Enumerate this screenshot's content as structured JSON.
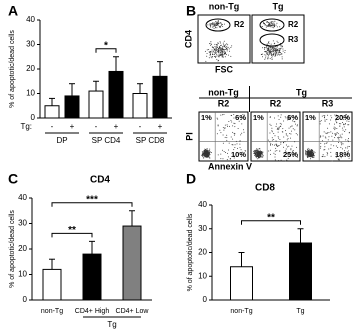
{
  "chart_data": [
    {
      "type": "bar",
      "panel": "A",
      "ylabel": "% of apoptotic/dead cells",
      "ylim": [
        0,
        40
      ],
      "yticks": [
        0,
        10,
        20,
        30,
        40
      ],
      "legend_title": "Tg:",
      "categories": [
        "DP",
        "SP CD4",
        "SP CD8"
      ],
      "series": [
        {
          "name": "-",
          "color": "#ffffff",
          "values": [
            5,
            11,
            10
          ],
          "errors": [
            3,
            4,
            4
          ]
        },
        {
          "name": "+",
          "color": "#000000",
          "values": [
            9,
            19,
            17
          ],
          "errors": [
            5,
            6,
            6
          ]
        }
      ],
      "annotations": [
        {
          "text": "*",
          "between": [
            "SP CD4"
          ]
        }
      ]
    },
    {
      "type": "flow",
      "panel": "B",
      "top": {
        "xlabel": "FSC",
        "ylabel": "CD4",
        "plots": [
          {
            "name": "non-Tg",
            "gates": [
              "R2"
            ]
          },
          {
            "name": "Tg",
            "gates": [
              "R2",
              "R3"
            ]
          }
        ]
      },
      "bottom": {
        "xlabel": "Annexin V",
        "ylabel": "PI",
        "groups": [
          {
            "name": "non-Tg",
            "plots": [
              {
                "gate": "R2",
                "values": [
                  1,
                  6,
                  10
                ],
                "value_labels": [
                  "1%",
                  "6%",
                  "10%"
                ]
              }
            ]
          },
          {
            "name": "Tg",
            "plots": [
              {
                "gate": "R2",
                "values": [
                  1,
                  6,
                  25
                ],
                "value_labels": [
                  "1%",
                  "6%",
                  "25%"
                ]
              },
              {
                "gate": "R3",
                "values": [
                  1,
                  20,
                  18
                ],
                "value_labels": [
                  "1%",
                  "20%",
                  "18%"
                ]
              }
            ]
          }
        ]
      }
    },
    {
      "type": "bar",
      "panel": "C",
      "title": "CD4",
      "ylabel": "% of apoptotic/dead cells",
      "ylim": [
        0,
        40
      ],
      "yticks": [
        0,
        10,
        20,
        30,
        40
      ],
      "categories": [
        "non-Tg",
        "CD4+ High",
        "CD4+ Low"
      ],
      "values": [
        12,
        18,
        29
      ],
      "errors": [
        4,
        5,
        6
      ],
      "colors": [
        "#ffffff",
        "#000000",
        "#808080"
      ],
      "category_groups": [
        {
          "name": "Tg",
          "members": [
            "CD4+ High",
            "CD4+ Low"
          ]
        }
      ],
      "annotations": [
        {
          "text": "**",
          "between": [
            "non-Tg",
            "CD4+ High"
          ]
        },
        {
          "text": "***",
          "between": [
            "non-Tg",
            "CD4+ Low"
          ]
        }
      ]
    },
    {
      "type": "bar",
      "panel": "D",
      "title": "CD8",
      "ylabel": "% of apoptotic/dead cells",
      "ylim": [
        0,
        40
      ],
      "yticks": [
        0,
        10,
        20,
        30,
        40
      ],
      "categories": [
        "non-Tg",
        "Tg"
      ],
      "values": [
        14,
        24
      ],
      "errors": [
        6,
        6
      ],
      "colors": [
        "#ffffff",
        "#000000"
      ],
      "annotations": [
        {
          "text": "**",
          "between": [
            "non-Tg",
            "Tg"
          ]
        }
      ]
    }
  ]
}
